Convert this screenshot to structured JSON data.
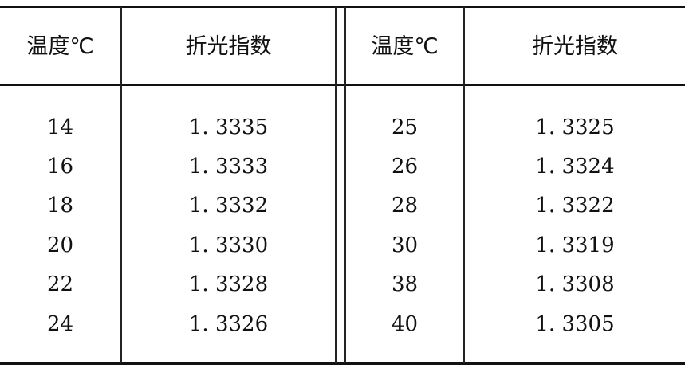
{
  "headers": [
    "温度℃",
    "折光指数",
    "温度℃",
    "折光指数"
  ],
  "left_rows": [
    {
      "temp": "14",
      "index": "1. 3335"
    },
    {
      "temp": "16",
      "index": "1. 3333"
    },
    {
      "temp": "18",
      "index": "1. 3332"
    },
    {
      "temp": "20",
      "index": "1. 3330"
    },
    {
      "temp": "22",
      "index": "1. 3328"
    },
    {
      "temp": "24",
      "index": "1. 3326"
    }
  ],
  "right_rows": [
    {
      "temp": "25",
      "index": "1. 3325"
    },
    {
      "temp": "26",
      "index": "1. 3324"
    },
    {
      "temp": "28",
      "index": "1. 3322"
    },
    {
      "temp": "30",
      "index": "1. 3319"
    },
    {
      "temp": "38",
      "index": "1. 3308"
    },
    {
      "temp": "40",
      "index": "1. 3305"
    }
  ]
}
